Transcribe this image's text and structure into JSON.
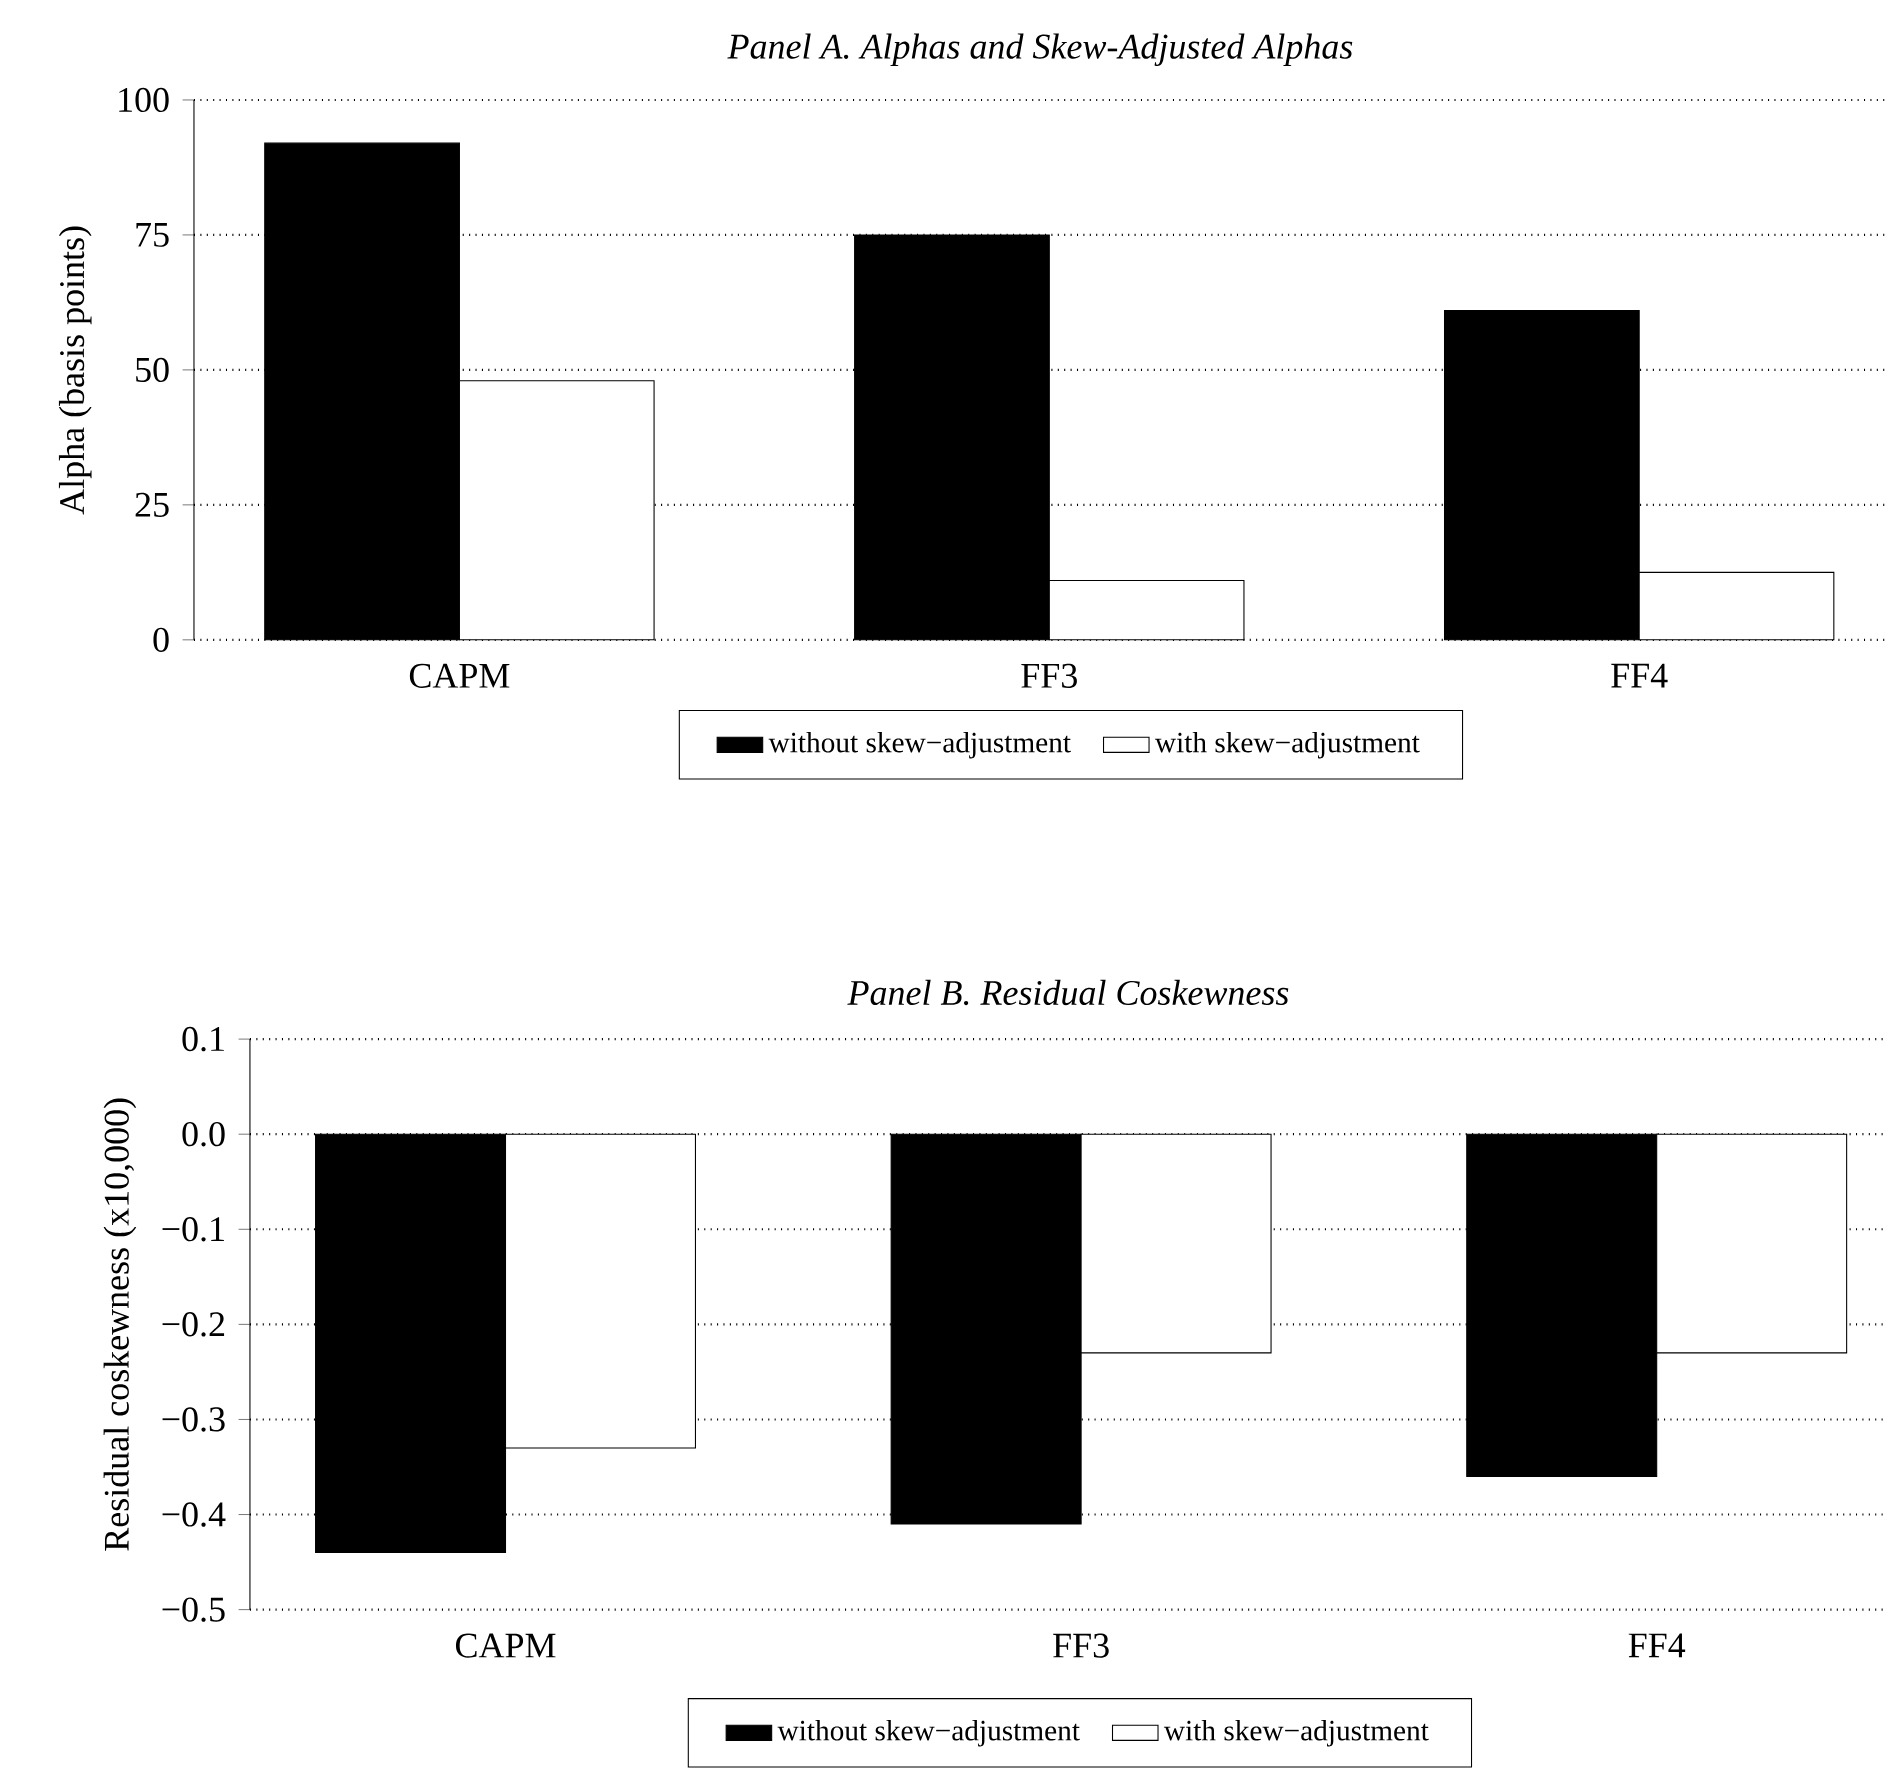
{
  "chart_data": [
    {
      "type": "bar",
      "title": "Panel A. Alphas and Skew-Adjusted Alphas",
      "ylabel": "Alpha (basis points)",
      "categories": [
        "CAPM",
        "FF3",
        "FF4"
      ],
      "series": [
        {
          "name": "without skew−adjustment",
          "color": "#000000",
          "values": [
            92,
            75,
            61
          ]
        },
        {
          "name": "with skew−adjustment",
          "color": "#ffffff",
          "values": [
            48,
            11,
            12.5
          ]
        }
      ],
      "ylim": [
        0,
        100
      ],
      "yticks": [
        0,
        25,
        50,
        75,
        100
      ],
      "grid": "y",
      "legend": "bottom"
    },
    {
      "type": "bar",
      "title": "Panel B. Residual Coskewness",
      "ylabel": "Residual coskewness (x10,000)",
      "categories": [
        "CAPM",
        "FF3",
        "FF4"
      ],
      "series": [
        {
          "name": "without skew−adjustment",
          "color": "#000000",
          "values": [
            -0.44,
            -0.41,
            -0.36
          ]
        },
        {
          "name": "with skew−adjustment",
          "color": "#ffffff",
          "values": [
            -0.33,
            -0.23,
            -0.23
          ]
        }
      ],
      "ylim": [
        -0.5,
        0.1
      ],
      "yticks": [
        {
          "value": -0.5,
          "label": "−0.5"
        },
        {
          "value": -0.4,
          "label": "−0.4"
        },
        {
          "value": -0.3,
          "label": "−0.3"
        },
        {
          "value": -0.2,
          "label": "−0.2"
        },
        {
          "value": -0.1,
          "label": "−0.1"
        },
        {
          "value": 0.0,
          "label": "0.0"
        },
        {
          "value": 0.1,
          "label": "0.1"
        }
      ],
      "grid": "y",
      "legend": "bottom"
    }
  ]
}
